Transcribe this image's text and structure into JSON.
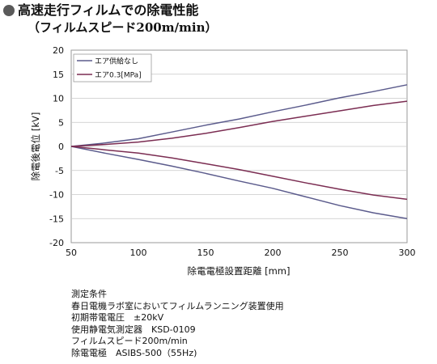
{
  "header": {
    "title": "高速走行フィルムでの除電性能",
    "subtitle": "（フィルムスピード200m/min）"
  },
  "chart_data": {
    "type": "line",
    "xlabel": "除電電極設置距離 [mm]",
    "ylabel": "除電後電位 [kV]",
    "xlim": [
      50,
      300
    ],
    "ylim": [
      -20,
      20
    ],
    "xticks": [
      50,
      100,
      150,
      200,
      250,
      300
    ],
    "yticks": [
      20,
      15,
      10,
      5,
      0,
      -5,
      -10,
      -15,
      -20
    ],
    "grid": "horizontal",
    "legend": "top-left",
    "x": [
      50,
      75,
      100,
      125,
      150,
      175,
      200,
      225,
      250,
      275,
      300
    ],
    "series": [
      {
        "name": "エア供給なし",
        "color": "#5b5b8c",
        "values": [
          0,
          0.7,
          1.6,
          3.0,
          4.4,
          5.7,
          7.2,
          8.6,
          10.1,
          11.4,
          12.8
        ]
      },
      {
        "name": "エア0.3[MPa]",
        "color": "#7b2d52",
        "values": [
          0,
          0.4,
          0.9,
          1.7,
          2.7,
          3.9,
          5.2,
          6.3,
          7.4,
          8.5,
          9.4
        ]
      },
      {
        "name": "エア供給なし",
        "color": "#5b5b8c",
        "values": [
          0,
          -1.4,
          -2.7,
          -4.1,
          -5.6,
          -7.2,
          -8.7,
          -10.5,
          -12.3,
          -13.8,
          -15.0
        ]
      },
      {
        "name": "エア0.3[MPa]",
        "color": "#7b2d52",
        "values": [
          0,
          -0.7,
          -1.4,
          -2.4,
          -3.6,
          -4.8,
          -6.2,
          -7.6,
          -8.9,
          -10.1,
          -11.0
        ]
      }
    ],
    "legend_entries": [
      {
        "label": "エア供給なし",
        "color": "#5b5b8c"
      },
      {
        "label": "エア0.3[MPa]",
        "color": "#7b2d52"
      }
    ]
  },
  "conditions": [
    "測定条件",
    "春日電機ラボ室においてフィルムランニング装置使用",
    "初期帯電電圧　±20kV",
    "使用静電気測定器　KSD-0109",
    "フィルムスピード200m/min",
    "除電電極　ASIBS-500（55Hz)"
  ]
}
